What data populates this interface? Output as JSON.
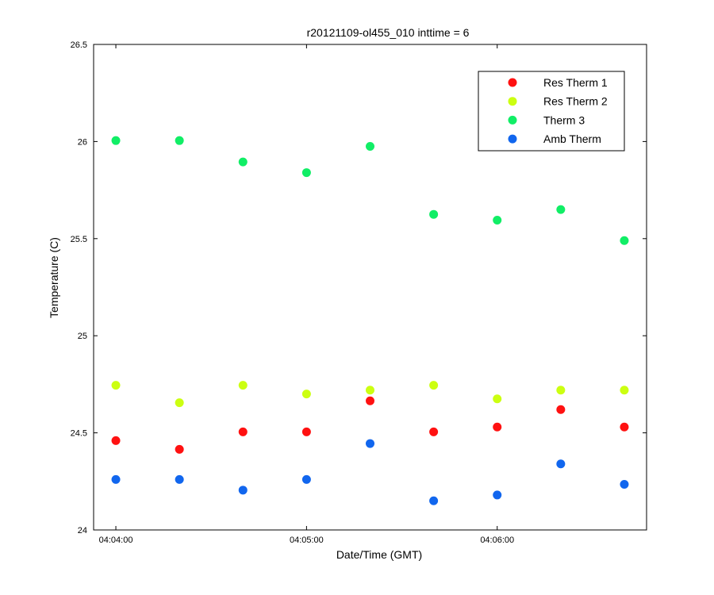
{
  "chart_data": {
    "type": "scatter",
    "title": "r20121109-ol455_010 inttime = 6",
    "xlabel": "Date/Time (GMT)",
    "ylabel": "Temperature (C)",
    "x_time_labels": [
      "04:04:00",
      "04:04:20",
      "04:04:40",
      "04:05:00",
      "04:05:20",
      "04:05:40",
      "04:06:00",
      "04:06:20",
      "04:06:40"
    ],
    "xlim": [
      "04:03:53",
      "04:06:47"
    ],
    "xticks": [
      "04:04:00",
      "04:05:00",
      "04:06:00"
    ],
    "ylim": [
      24,
      26.5
    ],
    "yticks": [
      "24",
      "24.5",
      "25",
      "25.5",
      "26",
      "26.5"
    ],
    "grid": false,
    "legend_position": "top-right",
    "series": [
      {
        "name": "Res Therm 1",
        "color": "#ff1111",
        "values": [
          24.46,
          24.415,
          24.505,
          24.505,
          24.665,
          24.505,
          24.53,
          24.62,
          24.53
        ]
      },
      {
        "name": "Res Therm 2",
        "color": "#ccff11",
        "values": [
          24.745,
          24.655,
          24.745,
          24.7,
          24.72,
          24.745,
          24.675,
          24.72,
          24.72
        ]
      },
      {
        "name": "Therm 3",
        "color": "#11ee66",
        "values": [
          26.005,
          26.005,
          25.895,
          25.84,
          25.975,
          25.625,
          25.595,
          25.65,
          25.49
        ]
      },
      {
        "name": "Amb Therm",
        "color": "#1166ee",
        "values": [
          24.26,
          24.26,
          24.205,
          24.26,
          24.445,
          24.15,
          24.18,
          24.34,
          24.235
        ]
      }
    ]
  }
}
